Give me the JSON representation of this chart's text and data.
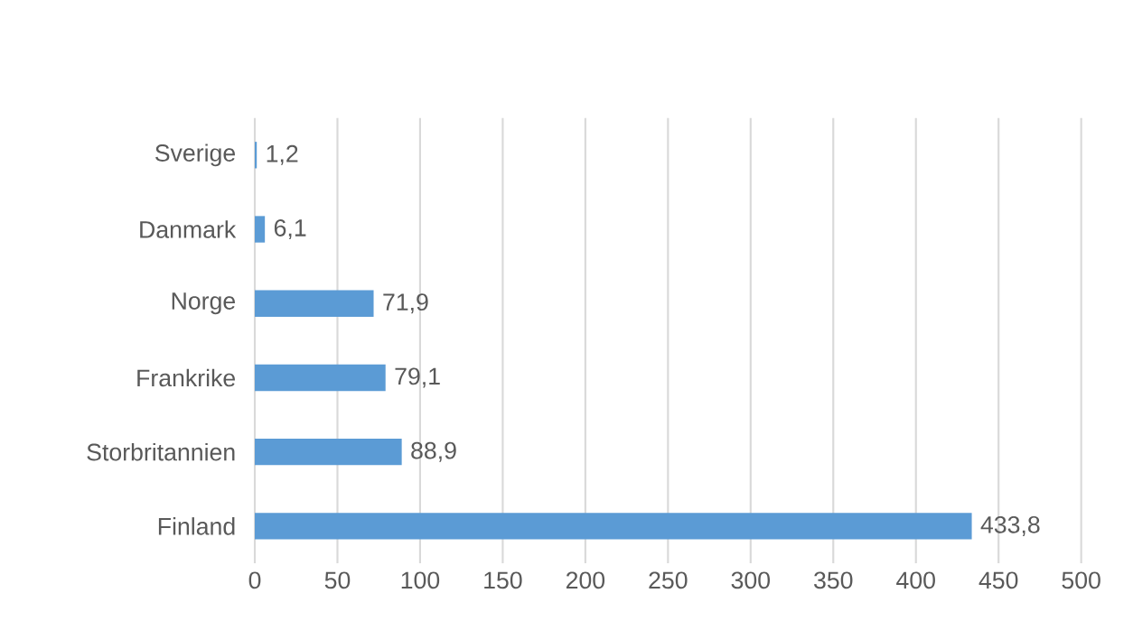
{
  "chart_data": {
    "type": "bar",
    "orientation": "horizontal",
    "categories": [
      "Sverige",
      "Danmark",
      "Norge",
      "Frankrike",
      "Storbritannien",
      "Finland"
    ],
    "values": [
      1.2,
      6.1,
      71.9,
      79.1,
      88.9,
      433.8
    ],
    "value_labels": [
      "1,2",
      "6,1",
      "71,9",
      "79,1",
      "88,9",
      "433,8"
    ],
    "color": "#5b9bd5",
    "xlim": [
      0,
      500
    ],
    "xticks": [
      0,
      50,
      100,
      150,
      200,
      250,
      300,
      350,
      400,
      450,
      500
    ],
    "grid": "x"
  }
}
